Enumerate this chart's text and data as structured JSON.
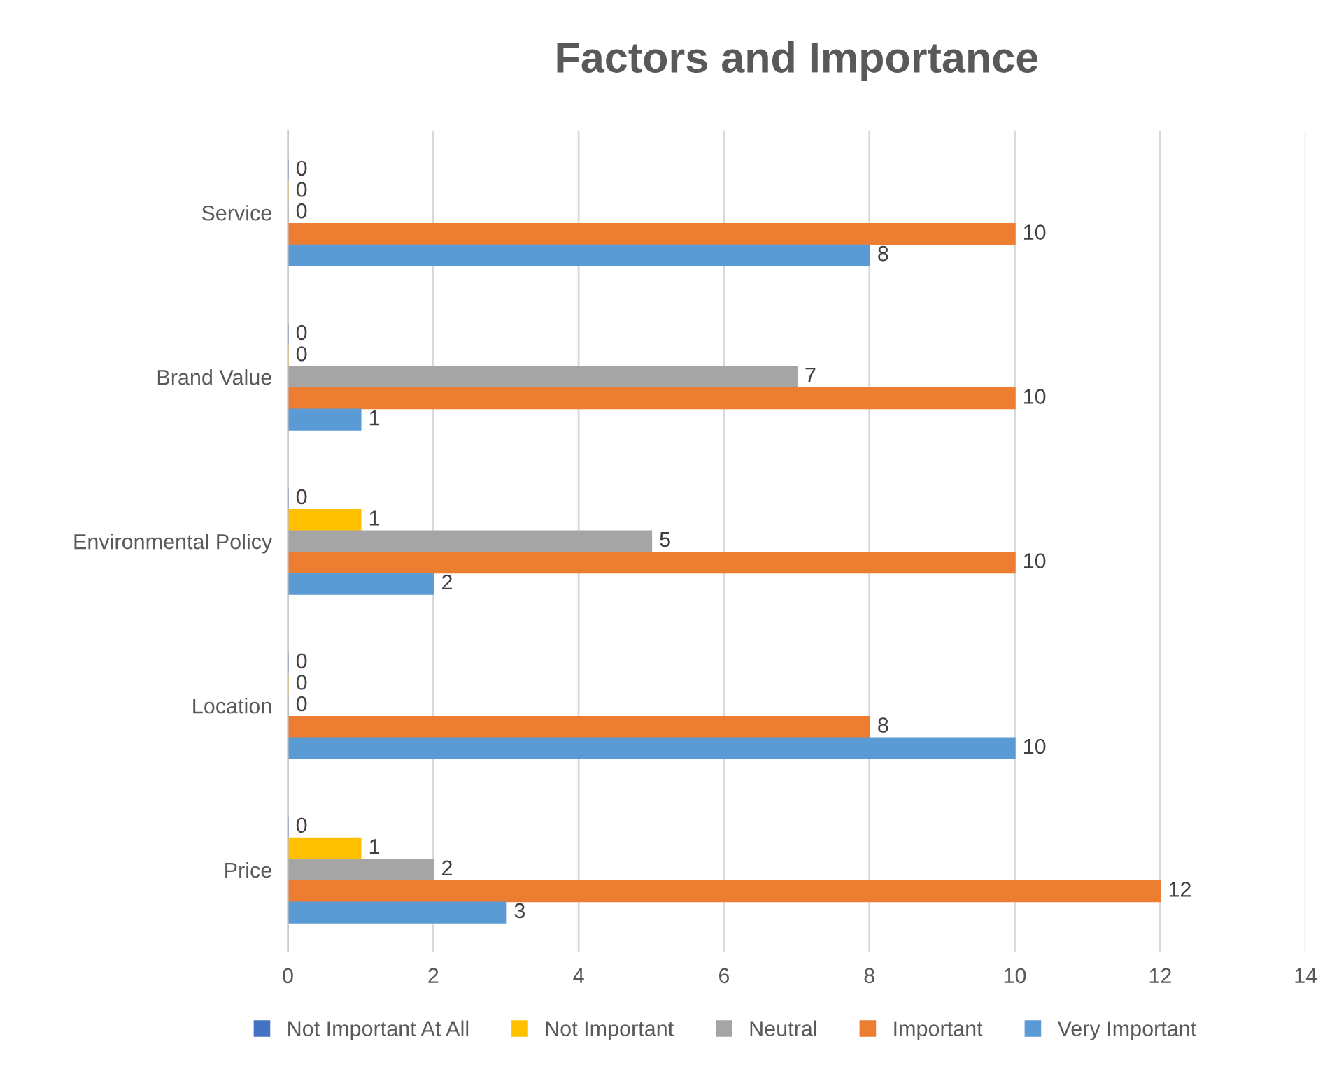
{
  "chart_data": {
    "type": "bar",
    "orientation": "horizontal",
    "title": "Factors and Importance",
    "categories": [
      "Service",
      "Brand Value",
      "Environmental Policy",
      "Location",
      "Price"
    ],
    "series": [
      {
        "name": "Not Important At All",
        "color": "#4472c4",
        "values": [
          0,
          0,
          0,
          0,
          0
        ]
      },
      {
        "name": "Not Important",
        "color": "#ffc000",
        "values": [
          0,
          0,
          1,
          0,
          1
        ]
      },
      {
        "name": "Neutral",
        "color": "#a5a5a5",
        "values": [
          0,
          7,
          5,
          0,
          2
        ]
      },
      {
        "name": "Important",
        "color": "#ed7d31",
        "values": [
          10,
          10,
          10,
          8,
          12
        ]
      },
      {
        "name": "Very Important",
        "color": "#5b9bd5",
        "values": [
          8,
          1,
          2,
          10,
          3
        ]
      }
    ],
    "xlim": [
      0,
      14
    ],
    "xticks": [
      0,
      2,
      4,
      6,
      8,
      10,
      12,
      14
    ],
    "grid": "x",
    "legend": "bottom",
    "data_labels": true
  }
}
